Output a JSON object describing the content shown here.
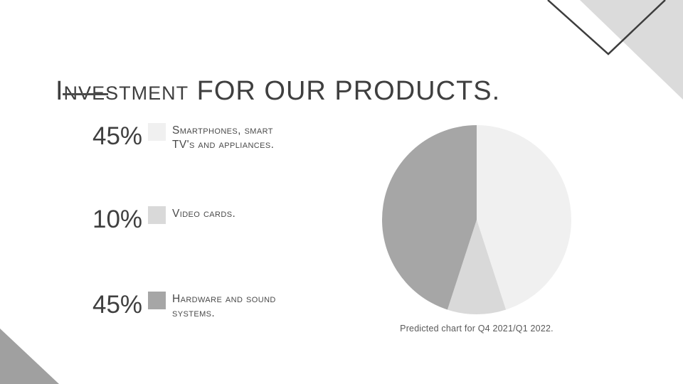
{
  "slide": {
    "title": "Investment FOR OUR PRODUCTS."
  },
  "legend": {
    "items": [
      {
        "pct": "45%",
        "label": "Smartphones, smart TV's and appliances.",
        "color": "#f0f0f0"
      },
      {
        "pct": "10%",
        "label": "Video cards.",
        "color": "#d9d9d9"
      },
      {
        "pct": "45%",
        "label": "Hardware and sound systems.",
        "color": "#a6a6a6"
      }
    ]
  },
  "chart_data": {
    "type": "pie",
    "labels": [
      "Smartphones, smart TV's and appliances.",
      "Video cards.",
      "Hardware and sound systems."
    ],
    "values": [
      45,
      10,
      45
    ],
    "unit": "percent",
    "colors": [
      "#f0f0f0",
      "#d9d9d9",
      "#a6a6a6"
    ],
    "start_angle": "12-oclock",
    "direction": "clockwise",
    "caption": "Predicted chart for Q4 2021/Q1 2022.",
    "legend_position": "left"
  },
  "decor": {
    "top_right_triangle_color": "#dbdbdb",
    "chevron_stroke_color": "#3d3d3d",
    "bottom_left_triangle_color": "#a0a0a0"
  }
}
